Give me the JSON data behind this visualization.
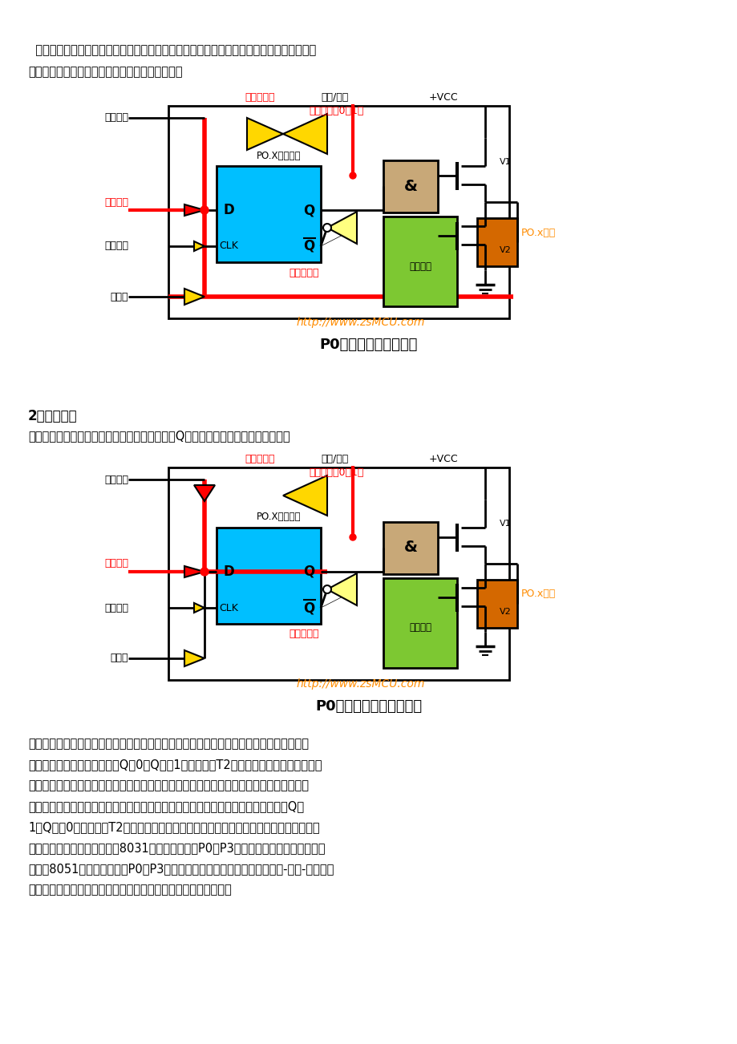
{
  "bg_color": "#ffffff",
  "page_width": 9.2,
  "page_height": 13.02,
  "top_text1": "  读芯片引脚上的数据，读引脚数时，读引脚缓冲器打开（即三态缓冲器的控制端要有效），",
  "top_text2": "通过内部数据总线输入，请看下图（红色简头）。",
  "diagram1_title": "P0口读引脚时的流程图",
  "section2_heading": "2、读锁存器",
  "section2_text": "通过打开读锁存器三态缓冲器读取锁存器输出端Q的状态，请看下图（红色简头）：",
  "diagram2_title": "P0口读锁存器时的流程图",
  "bottom_text_lines": [
    "在输入状态下，从锁存器和从引脚上读来的信号一般是一致的，但也有例外。例如，当从内",
    "部总线输出低电平后，锁存器Q＝0，Q非＝1，场效应管T2开通，端口线呈低电平状态。",
    "此时无论端口线上外接的信号是低电平还是高电平，从引脚读入单片机的信号都是低电平，",
    "因而不能正确地读入端口引脚上的信号。又如，当从内部总线输出高电平后，锁存器Q＝",
    "1，Q非＝0，场效应管T2截止。如外接引脚信号为低电平，从引脚上读入的信号就与从锁",
    "存器读入的信号不同。为此，8031单片机在对端口P0～P3的输入操作上，有如下约定：",
    "为此，8051单片机在对端口P0～P3的输入操作上，有如下约定：凡属于读-修改-写方式的",
    "指令，从锁存器读入信号，其它指令则从端口引脚线上读入信号。"
  ],
  "url_text": "http://www.zsMCU.com",
  "label_rdup1": "读锁存器",
  "label_nzx1": "内部总线",
  "label_wxcc1": "写锁存器",
  "label_rdpin1": "读引脚",
  "label_pox_pin": "PO.x引脚",
  "label_input_buf": "输入缓冲器",
  "label_addr_data": "地址/数据",
  "label_vcc": "+VCC",
  "label_ctrl": "控制信号（0，1）",
  "label_pox_latch": "PO.X脚锁存器",
  "label_mux": "多路开关",
  "colors": {
    "red": "#FF0000",
    "orange": "#FF8C00",
    "green": "#7DC832",
    "yellow": "#FFD700",
    "light_yellow": "#FFFF80",
    "cyan": "#00BFFF",
    "beige": "#C8A878",
    "black": "#000000",
    "white": "#FFFFFF",
    "dark_orange": "#CC6600"
  }
}
